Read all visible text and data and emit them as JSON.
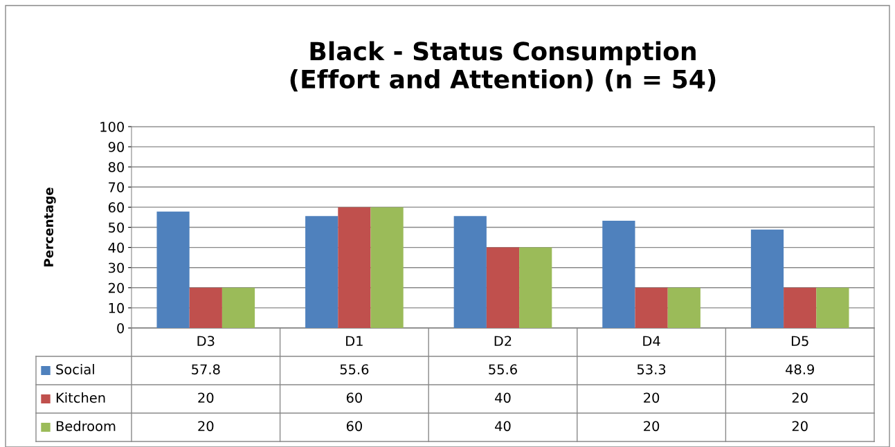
{
  "chart_data": {
    "type": "bar",
    "title": "Black - Status Consumption\n(Effort and Attention) (n = 54)",
    "ylabel": "Percentage",
    "categories": [
      "D3",
      "D1",
      "D2",
      "D4",
      "D5"
    ],
    "series": [
      {
        "name": "Social",
        "color": "#4f81bd",
        "values": [
          57.8,
          55.6,
          55.6,
          53.3,
          48.9
        ]
      },
      {
        "name": "Kitchen",
        "color": "#c0504d",
        "values": [
          20,
          60,
          40,
          20,
          20
        ]
      },
      {
        "name": "Bedroom",
        "color": "#9bbb59",
        "values": [
          20,
          60,
          40,
          20,
          20
        ]
      }
    ],
    "ylim": [
      0,
      100
    ],
    "yticks": [
      0,
      10,
      20,
      30,
      40,
      50,
      60,
      70,
      80,
      90,
      100
    ],
    "grid": "y",
    "data_labels": true,
    "legend": "bottom"
  }
}
